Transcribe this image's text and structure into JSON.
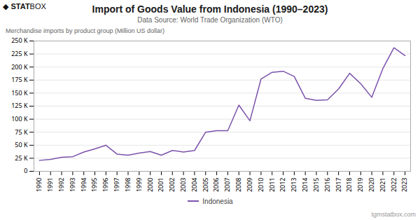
{
  "chart_data": {
    "type": "line",
    "title": "Import of Goods Value from Indonesia (1990–2023)",
    "subtitle": "Data Source: World Trade Organization (WTO)",
    "logo_text": "◆ STATBOX",
    "watermark": "tgmstatbox.com",
    "ylabel": "Merchandise imports by product group (Million US dollar)",
    "x": [
      1990,
      1991,
      1992,
      1993,
      1994,
      1995,
      1996,
      1997,
      1998,
      1999,
      2000,
      2001,
      2002,
      2003,
      2004,
      2005,
      2006,
      2007,
      2008,
      2009,
      2010,
      2011,
      2012,
      2013,
      2014,
      2015,
      2016,
      2017,
      2018,
      2019,
      2020,
      2021,
      2022,
      2023
    ],
    "series": [
      {
        "name": "Indonesia",
        "color": "#7b52ab",
        "values": [
          21000,
          23000,
          27000,
          28000,
          37000,
          43000,
          50000,
          33000,
          31000,
          35000,
          38000,
          31000,
          40000,
          37000,
          40000,
          75000,
          78000,
          78000,
          127000,
          97000,
          177000,
          190000,
          192000,
          182000,
          140000,
          136000,
          137000,
          158000,
          188000,
          168000,
          142000,
          197000,
          237000,
          222000
        ]
      }
    ],
    "xlim": [
      1989.5,
      2023.5
    ],
    "xticks": [
      1990,
      1991,
      1992,
      1993,
      1994,
      1995,
      1996,
      1997,
      1998,
      1999,
      2000,
      2001,
      2002,
      2003,
      2004,
      2005,
      2006,
      2007,
      2008,
      2009,
      2010,
      2011,
      2012,
      2013,
      2014,
      2015,
      2016,
      2017,
      2018,
      2019,
      2020,
      2021,
      2022,
      2023
    ],
    "ylim": [
      0,
      250000
    ],
    "yticks": [
      0,
      {
        "value": 25000,
        "label": "25 K"
      },
      {
        "value": 50000,
        "label": "50 K"
      },
      {
        "value": 75000,
        "label": "75 K"
      },
      {
        "value": 100000,
        "label": "100 K"
      },
      {
        "value": 125000,
        "label": "125 K"
      },
      {
        "value": 150000,
        "label": "150 K"
      },
      {
        "value": 175000,
        "label": "175 K"
      },
      {
        "value": 200000,
        "label": "200 K"
      },
      {
        "value": 225000,
        "label": "225 K"
      },
      {
        "value": 250000,
        "label": "250 K"
      }
    ],
    "grid": true,
    "legend": "bottom"
  }
}
